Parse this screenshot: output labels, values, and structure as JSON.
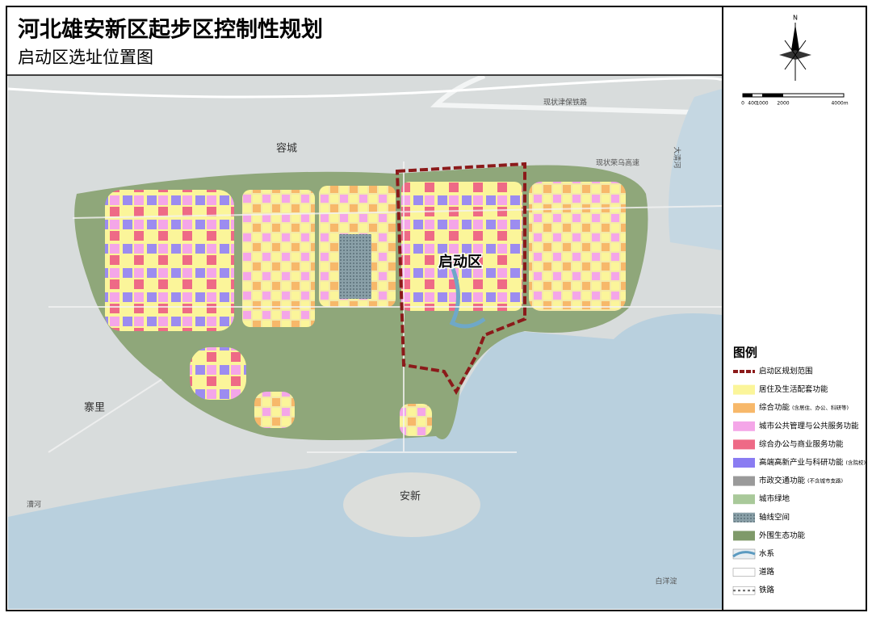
{
  "header": {
    "title": "河北雄安新区起步区控制性规划",
    "subtitle": "启动区选址位置图"
  },
  "north": "N",
  "scale": [
    "0",
    "400",
    "1000",
    "2000",
    "4000m"
  ],
  "map": {
    "start_area": "启动区",
    "places": [
      "容城",
      "寨里",
      "安新",
      "白洋淀",
      "漕河",
      "大清河",
      "现状津保铁路",
      "现状荣乌高速"
    ]
  },
  "legend": {
    "title": "图例",
    "items": [
      {
        "label": "启动区规划范围"
      },
      {
        "label": "居住及生活配套功能"
      },
      {
        "label": "综合功能",
        "note": "(含居住、办公、科研等)"
      },
      {
        "label": "城市公共管理与公共服务功能"
      },
      {
        "label": "综合办公与商业服务功能"
      },
      {
        "label": "高端高新产业与科研功能",
        "note": "(含院校)"
      },
      {
        "label": "市政交通功能",
        "note": "(不含城市支路)"
      },
      {
        "label": "城市绿地"
      },
      {
        "label": "轴线空间"
      },
      {
        "label": "外围生态功能"
      },
      {
        "label": "水系"
      },
      {
        "label": "道路"
      },
      {
        "label": "铁路"
      }
    ]
  }
}
